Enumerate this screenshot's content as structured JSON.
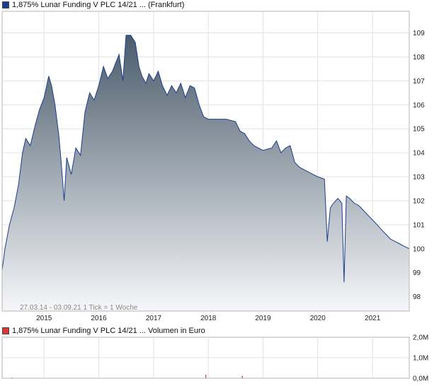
{
  "price_legend": {
    "label": "1,875% Lunar Funding V PLC 14/21 ... (Frankfurt)",
    "color": "#1a3d8f"
  },
  "volume_legend": {
    "label": "1,875% Lunar Funding V PLC 14/21 ... Volumen in Euro",
    "color": "#d63a3a"
  },
  "chart_info": "27.03.14 - 03.09.21   1 Tick = 1 Woche",
  "chart_data": [
    {
      "type": "area",
      "title": "1,875% Lunar Funding V PLC 14/21 ... (Frankfurt)",
      "x_range": [
        "2014-03-27",
        "2021-09-03"
      ],
      "x_ticks": [
        "2015",
        "2016",
        "2017",
        "2018",
        "2019",
        "2020",
        "2021"
      ],
      "y_ticks": [
        98,
        99,
        100,
        101,
        102,
        103,
        104,
        105,
        106,
        107,
        108,
        109
      ],
      "ylim": [
        97.4,
        109.9
      ],
      "grid": true,
      "line_color": "#1a3d8f",
      "series": [
        {
          "points": [
            [
              "2014-03-27",
              99.1
            ],
            [
              "2014-04-15",
              100.0
            ],
            [
              "2014-05-15",
              101.0
            ],
            [
              "2014-06-15",
              101.7
            ],
            [
              "2014-07-15",
              102.7
            ],
            [
              "2014-08-10",
              104.0
            ],
            [
              "2014-09-01",
              104.6
            ],
            [
              "2014-10-01",
              104.3
            ],
            [
              "2014-11-01",
              105.1
            ],
            [
              "2014-12-01",
              105.8
            ],
            [
              "2015-01-01",
              106.3
            ],
            [
              "2015-02-01",
              107.2
            ],
            [
              "2015-02-20",
              106.8
            ],
            [
              "2015-03-15",
              106.0
            ],
            [
              "2015-04-10",
              104.7
            ],
            [
              "2015-04-25",
              103.6
            ],
            [
              "2015-05-15",
              102.0
            ],
            [
              "2015-06-01",
              103.8
            ],
            [
              "2015-07-01",
              103.1
            ],
            [
              "2015-08-01",
              104.2
            ],
            [
              "2015-09-01",
              103.9
            ],
            [
              "2015-10-01",
              105.7
            ],
            [
              "2015-11-01",
              106.5
            ],
            [
              "2015-12-01",
              106.2
            ],
            [
              "2016-01-01",
              106.8
            ],
            [
              "2016-02-01",
              107.6
            ],
            [
              "2016-03-01",
              107.1
            ],
            [
              "2016-04-01",
              107.4
            ],
            [
              "2016-05-15",
              108.1
            ],
            [
              "2016-06-10",
              107.0
            ],
            [
              "2016-07-01",
              108.9
            ],
            [
              "2016-08-01",
              108.9
            ],
            [
              "2016-09-01",
              108.6
            ],
            [
              "2016-09-25",
              107.6
            ],
            [
              "2016-10-15",
              107.2
            ],
            [
              "2016-11-10",
              106.9
            ],
            [
              "2016-12-01",
              107.3
            ],
            [
              "2017-01-01",
              107.0
            ],
            [
              "2017-02-01",
              107.4
            ],
            [
              "2017-03-01",
              106.8
            ],
            [
              "2017-04-01",
              106.4
            ],
            [
              "2017-05-01",
              106.8
            ],
            [
              "2017-06-01",
              106.5
            ],
            [
              "2017-07-01",
              106.9
            ],
            [
              "2017-08-01",
              106.3
            ],
            [
              "2017-09-01",
              106.8
            ],
            [
              "2017-10-01",
              106.7
            ],
            [
              "2017-11-01",
              106.0
            ],
            [
              "2017-12-01",
              105.5
            ],
            [
              "2018-01-01",
              105.4
            ],
            [
              "2018-03-01",
              105.4
            ],
            [
              "2018-05-01",
              105.4
            ],
            [
              "2018-07-01",
              105.3
            ],
            [
              "2018-08-01",
              104.9
            ],
            [
              "2018-09-01",
              104.8
            ],
            [
              "2018-10-01",
              104.5
            ],
            [
              "2018-11-01",
              104.3
            ],
            [
              "2019-01-01",
              104.1
            ],
            [
              "2019-03-01",
              104.2
            ],
            [
              "2019-04-01",
              104.5
            ],
            [
              "2019-05-01",
              104.0
            ],
            [
              "2019-06-01",
              104.2
            ],
            [
              "2019-07-01",
              104.3
            ],
            [
              "2019-08-01",
              103.6
            ],
            [
              "2019-09-01",
              103.4
            ],
            [
              "2019-10-01",
              103.3
            ],
            [
              "2019-11-01",
              103.2
            ],
            [
              "2019-12-01",
              103.1
            ],
            [
              "2020-01-01",
              103.0
            ],
            [
              "2020-02-15",
              102.9
            ],
            [
              "2020-03-05",
              100.3
            ],
            [
              "2020-03-25",
              101.7
            ],
            [
              "2020-04-15",
              101.9
            ],
            [
              "2020-05-15",
              102.1
            ],
            [
              "2020-06-10",
              101.9
            ],
            [
              "2020-06-25",
              98.6
            ],
            [
              "2020-07-10",
              102.2
            ],
            [
              "2020-08-01",
              102.1
            ],
            [
              "2020-09-01",
              101.9
            ],
            [
              "2020-10-01",
              101.8
            ],
            [
              "2020-11-01",
              101.6
            ],
            [
              "2020-12-01",
              101.4
            ],
            [
              "2021-01-01",
              101.2
            ],
            [
              "2021-02-01",
              101.0
            ],
            [
              "2021-03-01",
              100.8
            ],
            [
              "2021-04-01",
              100.6
            ],
            [
              "2021-05-01",
              100.4
            ],
            [
              "2021-06-01",
              100.3
            ],
            [
              "2021-07-01",
              100.2
            ],
            [
              "2021-08-01",
              100.1
            ],
            [
              "2021-09-03",
              100.0
            ]
          ]
        }
      ]
    },
    {
      "type": "bar",
      "title": "1,875% Lunar Funding V PLC 14/21 ... Volumen in Euro",
      "y_ticks": [
        "0,0M",
        "1,0M",
        "2,0M"
      ],
      "ylim": [
        0,
        2.0
      ],
      "grid": true,
      "bars": [
        {
          "date": "2014-06-01",
          "value": 0.03,
          "color": "#2e9e3a"
        },
        {
          "date": "2017-12-15",
          "value": 0.17,
          "color": "#d63a3a"
        },
        {
          "date": "2018-08-15",
          "value": 0.12,
          "color": "#d63a3a"
        }
      ]
    }
  ]
}
